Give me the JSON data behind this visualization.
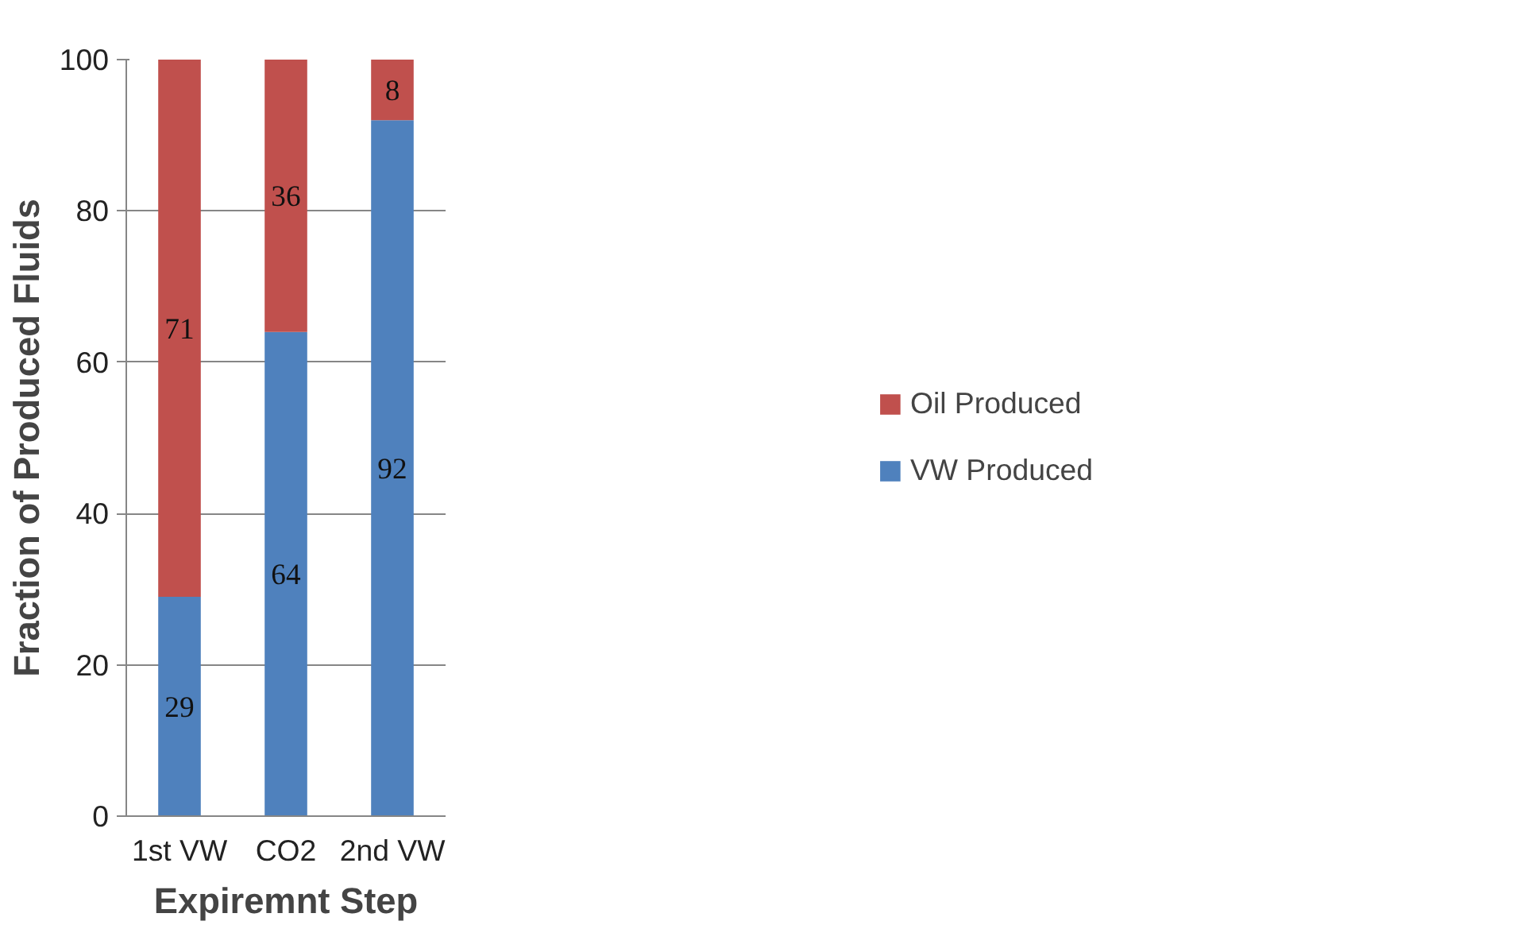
{
  "chart_data": {
    "type": "bar",
    "stacked": true,
    "xlabel": "Expiremnt Step",
    "ylabel": "Fraction of Produced Fluids",
    "categories": [
      "1st VW",
      "CO2",
      "2nd VW"
    ],
    "series": [
      {
        "name": "VW Produced",
        "color": "#4f81bd",
        "values": [
          29,
          64,
          92
        ]
      },
      {
        "name": "Oil Produced",
        "color": "#c0504d",
        "values": [
          71,
          36,
          8
        ]
      }
    ],
    "ylim": [
      0,
      100
    ],
    "yticks": [
      0,
      20,
      40,
      60,
      80,
      100
    ],
    "grid": "y",
    "legend": "right",
    "data_labels": true
  }
}
